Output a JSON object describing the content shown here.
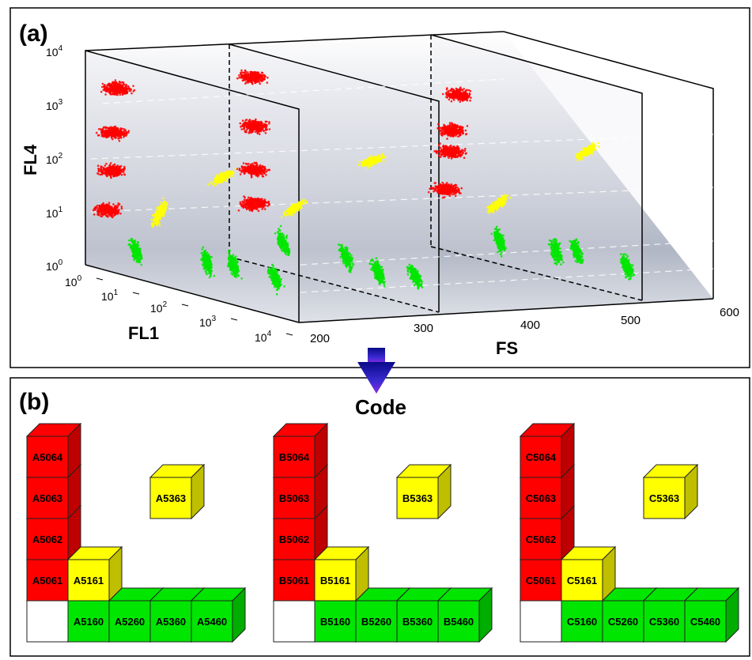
{
  "panel_a": {
    "label": "(a)",
    "axis_z": {
      "label": "FL4",
      "ticks": [
        {
          "base": "10",
          "exp": "4"
        },
        {
          "base": "10",
          "exp": "3"
        },
        {
          "base": "10",
          "exp": "2"
        },
        {
          "base": "10",
          "exp": "1"
        },
        {
          "base": "10",
          "exp": "0"
        }
      ]
    },
    "axis_y": {
      "label": "FL1",
      "ticks": [
        {
          "base": "10",
          "exp": "0"
        },
        {
          "base": "10",
          "exp": "1"
        },
        {
          "base": "10",
          "exp": "2"
        },
        {
          "base": "10",
          "exp": "3"
        },
        {
          "base": "10",
          "exp": "4"
        }
      ]
    },
    "axis_x": {
      "label": "FS",
      "ticks": [
        "200",
        "300",
        "400",
        "500",
        "600"
      ]
    }
  },
  "arrow_label": "Code",
  "panel_b": {
    "label": "(b)",
    "groups": [
      {
        "red": [
          "A5064",
          "A5063",
          "A5062",
          "A5061"
        ],
        "yellow_corner": "A5161",
        "yellow_float": "A5363",
        "green": [
          "A5160",
          "A5260",
          "A5360",
          "A5460"
        ]
      },
      {
        "red": [
          "B5064",
          "B5063",
          "B5062",
          "B5061"
        ],
        "yellow_corner": "B5161",
        "yellow_float": "B5363",
        "green": [
          "B5160",
          "B5260",
          "B5360",
          "B5460"
        ]
      },
      {
        "red": [
          "C5064",
          "C5063",
          "C5062",
          "C5061"
        ],
        "yellow_corner": "C5161",
        "yellow_float": "C5363",
        "green": [
          "C5160",
          "C5260",
          "C5360",
          "C5460"
        ]
      }
    ]
  },
  "colors": {
    "red": "#ff0000",
    "yellow": "#ffff00",
    "green": "#00e600",
    "arrow": "#1a1aa0"
  }
}
